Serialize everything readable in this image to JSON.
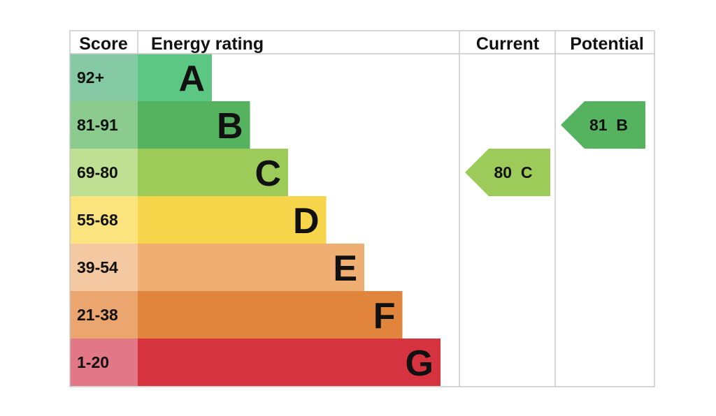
{
  "chart_data": {
    "type": "bar",
    "headers": {
      "score": "Score",
      "rating": "Energy rating",
      "current": "Current",
      "potential": "Potential"
    },
    "bands": [
      {
        "letter": "A",
        "range": "92+",
        "color": "#5cc783",
        "score_bg": "#84c9a3"
      },
      {
        "letter": "B",
        "range": "81-91",
        "color": "#55b35f",
        "score_bg": "#8ccb8e"
      },
      {
        "letter": "C",
        "range": "69-80",
        "color": "#9dcb5a",
        "score_bg": "#bfdf92"
      },
      {
        "letter": "D",
        "range": "55-68",
        "color": "#f7d54a",
        "score_bg": "#fbe47e"
      },
      {
        "letter": "E",
        "range": "39-54",
        "color": "#efae72",
        "score_bg": "#f4c8a0"
      },
      {
        "letter": "F",
        "range": "21-38",
        "color": "#e0853b",
        "score_bg": "#eba56f"
      },
      {
        "letter": "G",
        "range": "1-20",
        "color": "#d63341",
        "score_bg": "#e27787"
      }
    ],
    "current": {
      "value": 80,
      "band": "C",
      "label": "80  C",
      "color": "#9dcb5a"
    },
    "potential": {
      "value": 81,
      "band": "B",
      "label": "81  B",
      "color": "#55b35f"
    }
  }
}
